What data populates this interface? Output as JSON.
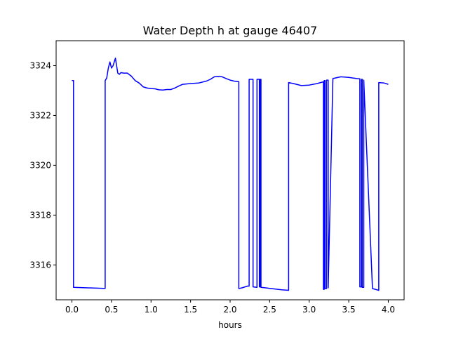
{
  "chart_data": {
    "type": "line",
    "title": "Water Depth h at gauge 46407",
    "xlabel": "hours",
    "ylabel": "",
    "xlim": [
      -0.2,
      4.2
    ],
    "ylim": [
      3314.6,
      3325.0
    ],
    "x_ticks": [
      0.0,
      0.5,
      1.0,
      1.5,
      2.0,
      2.5,
      3.0,
      3.5,
      4.0
    ],
    "x_tick_labels": [
      "0.0",
      "0.5",
      "1.0",
      "1.5",
      "2.0",
      "2.5",
      "3.0",
      "3.5",
      "4.0"
    ],
    "y_ticks": [
      3316,
      3318,
      3320,
      3322,
      3324
    ],
    "y_tick_labels": [
      "3316",
      "3318",
      "3320",
      "3322",
      "3324"
    ],
    "grid": false,
    "series": [
      {
        "color": "#0000ff",
        "x": [
          0.0,
          0.02,
          0.02,
          0.2,
          0.4,
          0.42,
          0.42,
          0.44,
          0.46,
          0.48,
          0.5,
          0.52,
          0.55,
          0.58,
          0.6,
          0.62,
          0.65,
          0.7,
          0.75,
          0.8,
          0.85,
          0.9,
          0.95,
          1.0,
          1.05,
          1.1,
          1.15,
          1.2,
          1.25,
          1.3,
          1.35,
          1.4,
          1.5,
          1.6,
          1.7,
          1.75,
          1.8,
          1.85,
          1.9,
          1.95,
          2.0,
          2.05,
          2.1,
          2.11,
          2.11,
          2.15,
          2.22,
          2.24,
          2.24,
          2.29,
          2.29,
          2.34,
          2.34,
          2.37,
          2.37,
          2.38,
          2.38,
          2.39,
          2.39,
          2.5,
          2.65,
          2.74,
          2.74,
          2.8,
          2.9,
          3.0,
          3.1,
          3.18,
          3.18,
          3.19,
          3.19,
          3.2,
          3.2,
          3.22,
          3.22,
          3.24,
          3.24,
          3.3,
          3.4,
          3.5,
          3.6,
          3.64,
          3.64,
          3.66,
          3.66,
          3.67,
          3.67,
          3.69,
          3.69,
          3.8,
          3.88,
          3.88,
          3.95,
          4.0
        ],
        "y": [
          3323.4,
          3323.4,
          3315.1,
          3315.08,
          3315.06,
          3315.06,
          3323.4,
          3323.5,
          3323.9,
          3324.15,
          3323.9,
          3324.0,
          3324.3,
          3323.7,
          3323.65,
          3323.72,
          3323.7,
          3323.7,
          3323.58,
          3323.4,
          3323.3,
          3323.15,
          3323.1,
          3323.08,
          3323.07,
          3323.03,
          3323.02,
          3323.04,
          3323.04,
          3323.1,
          3323.18,
          3323.25,
          3323.28,
          3323.3,
          3323.38,
          3323.45,
          3323.55,
          3323.57,
          3323.55,
          3323.48,
          3323.42,
          3323.38,
          3323.36,
          3323.36,
          3315.05,
          3315.08,
          3315.15,
          3315.15,
          3323.45,
          3323.45,
          3315.12,
          3315.1,
          3323.45,
          3323.45,
          3315.12,
          3315.12,
          3323.45,
          3323.45,
          3315.1,
          3315.06,
          3315.0,
          3314.98,
          3323.32,
          3323.28,
          3323.2,
          3323.22,
          3323.28,
          3323.35,
          3315.02,
          3315.02,
          3323.4,
          3323.4,
          3315.05,
          3315.05,
          3323.42,
          3323.42,
          3315.08,
          3323.48,
          3323.55,
          3323.53,
          3323.48,
          3323.47,
          3315.12,
          3315.12,
          3323.45,
          3323.45,
          3315.1,
          3315.1,
          3323.42,
          3315.05,
          3314.98,
          3323.32,
          3323.3,
          3323.25
        ]
      }
    ]
  }
}
